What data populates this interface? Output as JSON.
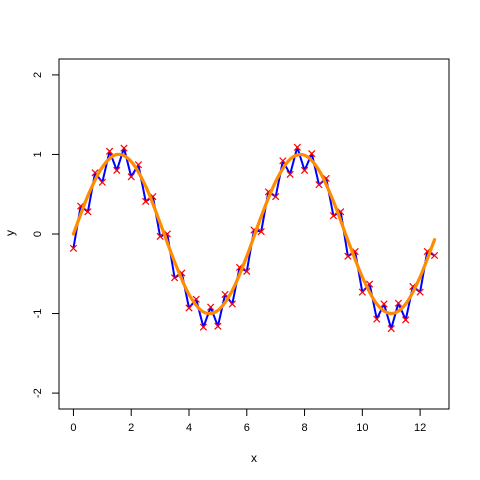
{
  "chart_data": {
    "type": "line",
    "title": "",
    "xlabel": "x",
    "ylabel": "y",
    "xlim": [
      -0.5,
      13.0
    ],
    "ylim": [
      -2.2,
      2.2
    ],
    "grid": false,
    "x_ticks": [
      0,
      2,
      4,
      6,
      8,
      10,
      12
    ],
    "x_tick_labels": [
      "0",
      "2",
      "4",
      "6",
      "8",
      "10",
      "12"
    ],
    "y_ticks": [
      -2,
      -1,
      0,
      1,
      2
    ],
    "y_tick_labels": [
      "-2",
      "-1",
      "0",
      "1",
      "2"
    ],
    "colors": {
      "observed_line": "#0000ff",
      "observed_marker": "#ff0000",
      "fitted_curve": "#ff8c00",
      "axes": "#000000"
    },
    "series": [
      {
        "role": "observed",
        "style": "line+cross-markers",
        "x": [
          0.0,
          0.25,
          0.5,
          0.75,
          1.0,
          1.25,
          1.5,
          1.75,
          2.0,
          2.25,
          2.5,
          2.75,
          3.0,
          3.25,
          3.5,
          3.75,
          4.0,
          4.25,
          4.5,
          4.75,
          5.0,
          5.25,
          5.5,
          5.75,
          6.0,
          6.25,
          6.5,
          6.75,
          7.0,
          7.25,
          7.5,
          7.75,
          8.0,
          8.25,
          8.5,
          8.75,
          9.0,
          9.25,
          9.5,
          9.75,
          10.0,
          10.25,
          10.5,
          10.75,
          11.0,
          11.25,
          11.5,
          11.75,
          12.0,
          12.25,
          12.5
        ],
        "y": [
          -0.18,
          0.35,
          0.28,
          0.77,
          0.65,
          1.04,
          0.8,
          1.08,
          0.72,
          0.87,
          0.41,
          0.47,
          -0.03,
          0.0,
          -0.55,
          -0.49,
          -0.93,
          -0.82,
          -1.17,
          -0.92,
          -1.16,
          -0.76,
          -0.88,
          -0.42,
          -0.47,
          0.05,
          0.03,
          0.53,
          0.47,
          0.92,
          0.75,
          1.09,
          0.8,
          1.01,
          0.62,
          0.7,
          0.23,
          0.28,
          -0.28,
          -0.22,
          -0.73,
          -0.63,
          -1.07,
          -0.88,
          -1.19,
          -0.87,
          -1.08,
          -0.66,
          -0.73,
          -0.22,
          -0.27
        ]
      },
      {
        "role": "fitted",
        "style": "smooth-line",
        "x": [
          0.0,
          0.5,
          1.0,
          1.5,
          2.0,
          2.5,
          3.0,
          3.5,
          4.0,
          4.5,
          5.0,
          5.5,
          6.0,
          6.5,
          7.0,
          7.5,
          8.0,
          8.5,
          9.0,
          9.5,
          10.0,
          10.5,
          11.0,
          11.5,
          12.0,
          12.5
        ],
        "y": [
          0.0,
          0.48,
          0.84,
          1.0,
          0.91,
          0.6,
          0.14,
          -0.35,
          -0.76,
          -0.98,
          -0.96,
          -0.71,
          -0.28,
          0.22,
          0.66,
          0.94,
          0.99,
          0.8,
          0.41,
          -0.08,
          -0.54,
          -0.88,
          -1.0,
          -0.88,
          -0.54,
          -0.07
        ]
      }
    ]
  }
}
